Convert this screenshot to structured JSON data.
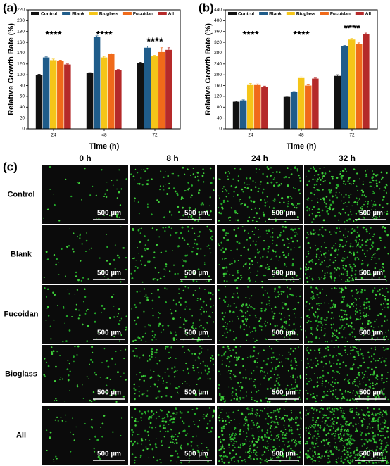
{
  "chart_data": [
    {
      "type": "bar",
      "panel_label": "(a)",
      "x_label": "Time (h)",
      "y_label": "Relative Growth Rate (%)",
      "categories": [
        "24",
        "48",
        "72"
      ],
      "series": [
        {
          "name": "Control",
          "color": "#111111",
          "values": [
            100,
            103,
            122
          ],
          "errors": [
            1,
            1,
            1
          ]
        },
        {
          "name": "Blank",
          "color": "#1f5c8a",
          "values": [
            132,
            170,
            150
          ],
          "errors": [
            1,
            2,
            3
          ]
        },
        {
          "name": "Bioglass",
          "color": "#f5c518",
          "values": [
            127,
            132,
            134
          ],
          "errors": [
            2,
            2,
            2
          ]
        },
        {
          "name": "Fucoidan",
          "color": "#f06a1a",
          "values": [
            125,
            138,
            142
          ],
          "errors": [
            2,
            2,
            8
          ]
        },
        {
          "name": "All",
          "color": "#b52a2a",
          "values": [
            119,
            109,
            146
          ],
          "errors": [
            1,
            1,
            4
          ]
        }
      ],
      "annotations": [
        "****",
        "****",
        "****"
      ],
      "ylim": [
        0,
        220
      ],
      "yticks": [
        0,
        20,
        40,
        60,
        80,
        100,
        120,
        140,
        160,
        180,
        200,
        220
      ],
      "legend": "top"
    },
    {
      "type": "bar",
      "panel_label": "(b)",
      "x_label": "Time (h)",
      "y_label": "Relative Growth Rate (%)",
      "categories": [
        "24",
        "48",
        "72"
      ],
      "series": [
        {
          "name": "Control",
          "color": "#111111",
          "values": [
            100,
            118,
            196
          ],
          "errors": [
            2,
            2,
            4
          ]
        },
        {
          "name": "Blank",
          "color": "#1f5c8a",
          "values": [
            105,
            136,
            305
          ],
          "errors": [
            2,
            2,
            3
          ]
        },
        {
          "name": "Bioglass",
          "color": "#f5c518",
          "values": [
            162,
            188,
            330
          ],
          "errors": [
            6,
            4,
            4
          ]
        },
        {
          "name": "Fucoidan",
          "color": "#f06a1a",
          "values": [
            162,
            160,
            314
          ],
          "errors": [
            4,
            3,
            4
          ]
        },
        {
          "name": "All",
          "color": "#b52a2a",
          "values": [
            155,
            186,
            350
          ],
          "errors": [
            3,
            2,
            4
          ]
        }
      ],
      "annotations": [
        "****",
        "****",
        "****"
      ],
      "ylim": [
        0,
        440
      ],
      "yticks": [
        0,
        40,
        80,
        120,
        160,
        200,
        240,
        280,
        320,
        360,
        400,
        440
      ],
      "legend": "top"
    }
  ],
  "images": {
    "panel_label": "(c)",
    "columns": [
      "0 h",
      "8 h",
      "24 h",
      "32 h"
    ],
    "rows": [
      "Control",
      "Blank",
      "Fucoidan",
      "Bioglass",
      "All"
    ],
    "scale_bar": "500 µm"
  }
}
